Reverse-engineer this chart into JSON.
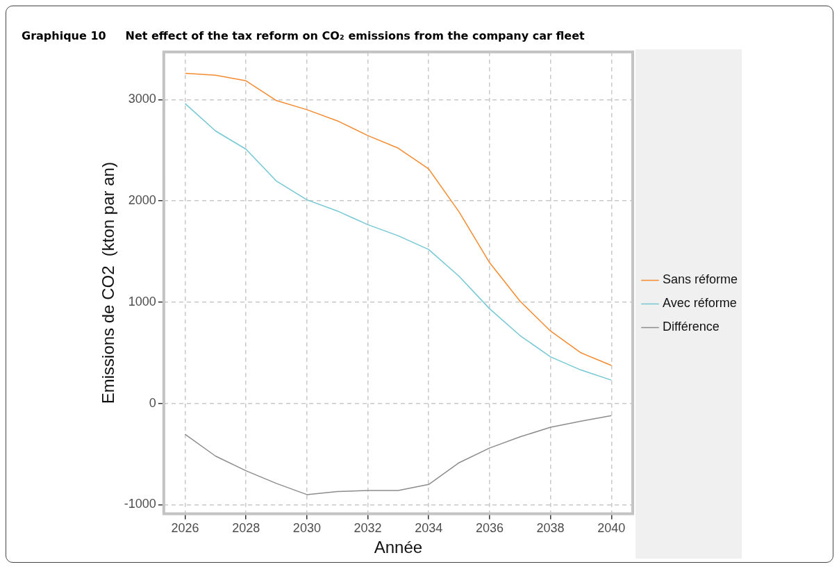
{
  "chart_data": {
    "type": "line",
    "title": "Graphique 10     Net effect of the tax reform on CO₂ emissions from the company car fleet",
    "xlabel": "Année",
    "ylabel": "Emissions de CO2  (kton par an)",
    "x": [
      2026,
      2027,
      2028,
      2029,
      2030,
      2031,
      2032,
      2033,
      2034,
      2035,
      2036,
      2037,
      2038,
      2039,
      2040
    ],
    "series": [
      {
        "name": "Sans réforme",
        "color": "#f58a2f",
        "values": [
          3260,
          3240,
          3185,
          2990,
          2900,
          2790,
          2645,
          2520,
          2315,
          1890,
          1390,
          1010,
          715,
          500,
          375
        ]
      },
      {
        "name": "Avec réforme",
        "color": "#74c7d4",
        "values": [
          2960,
          2690,
          2510,
          2195,
          2010,
          1900,
          1765,
          1655,
          1520,
          1255,
          935,
          670,
          460,
          330,
          230
        ]
      },
      {
        "name": "Différence",
        "color": "#8c8c8c",
        "values": [
          -305,
          -520,
          -665,
          -790,
          -900,
          -870,
          -860,
          -860,
          -800,
          -585,
          -440,
          -330,
          -235,
          -175,
          -120
        ]
      }
    ],
    "xlim": [
      2025.3,
      2040.7
    ],
    "ylim": [
      -1090,
      3470
    ],
    "xticks": [
      2026,
      2028,
      2030,
      2032,
      2034,
      2036,
      2038,
      2040
    ],
    "yticks": [
      -1000,
      0,
      1000,
      2000,
      3000
    ],
    "grid": true,
    "legend": "right",
    "marker": "none",
    "line_style": "solid"
  }
}
